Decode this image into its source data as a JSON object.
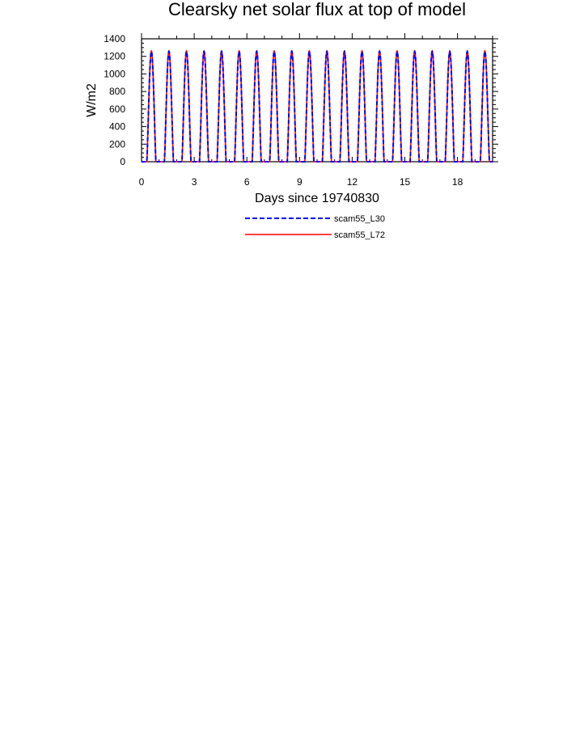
{
  "chart_data": {
    "type": "line",
    "title": "Clearsky net solar flux at top of model",
    "xlabel": "Days since 19740830",
    "ylabel": "W/m2",
    "xlim": [
      0,
      20
    ],
    "ylim": [
      0,
      1400
    ],
    "x_ticks": [
      "0",
      "3",
      "6",
      "9",
      "12",
      "15",
      "18"
    ],
    "y_ticks": [
      "0",
      "200",
      "400",
      "600",
      "800",
      "1000",
      "1200",
      "1400"
    ],
    "x_tick_values": [
      0,
      3,
      6,
      9,
      12,
      15,
      18
    ],
    "y_tick_values": [
      0,
      200,
      400,
      600,
      800,
      1000,
      1200,
      1400
    ],
    "grid": false,
    "legend_position": "bottom-center",
    "series": [
      {
        "name": "scam55_L30",
        "color": "#0000ff",
        "line_style": "dashed",
        "diurnal_peak": 1255,
        "daylight_start_frac": 0.3,
        "daylight_end_frac": 0.82,
        "days": 20
      },
      {
        "name": "scam55_L72",
        "color": "#ff0000",
        "line_style": "solid",
        "diurnal_peak": 1262,
        "daylight_start_frac": 0.3,
        "daylight_end_frac": 0.82,
        "days": 20
      }
    ]
  }
}
